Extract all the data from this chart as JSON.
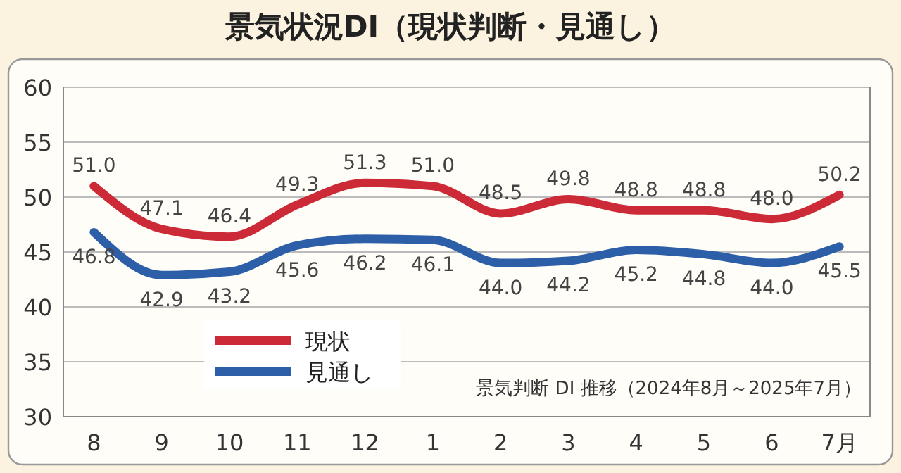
{
  "chart_data": {
    "type": "line",
    "title": "景気状況DI（現状判断・見通し）",
    "categories": [
      "8",
      "9",
      "10",
      "11",
      "12",
      "1",
      "2",
      "3",
      "4",
      "5",
      "6",
      "7月"
    ],
    "series": [
      {
        "name": "現状",
        "color": "#cc2a36",
        "values": [
          51.0,
          47.1,
          46.4,
          49.3,
          51.3,
          51.0,
          48.5,
          49.8,
          48.8,
          48.8,
          48.0,
          50.2
        ],
        "value_labels": [
          "51.0",
          "47.1",
          "46.4",
          "49.3",
          "51.3",
          "51.0",
          "48.5",
          "49.8",
          "48.8",
          "48.8",
          "48.0",
          "50.2"
        ]
      },
      {
        "name": "見通し",
        "color": "#2c5fa8",
        "values": [
          46.8,
          42.9,
          43.2,
          45.6,
          46.2,
          46.1,
          44.0,
          44.2,
          45.2,
          44.8,
          44.0,
          45.5
        ],
        "value_labels": [
          "46.8",
          "42.9",
          "43.2",
          "45.6",
          "46.2",
          "46.1",
          "44.0",
          "44.2",
          "45.2",
          "44.8",
          "44.0",
          "45.5"
        ]
      }
    ],
    "ylim": [
      30,
      60
    ],
    "yticks": [
      30,
      35,
      40,
      45,
      50,
      55,
      60
    ],
    "grid": "y",
    "legend": "bottom left",
    "marker": "none",
    "line_style": "solid",
    "annotations": [
      "景気判断 DI 推移（2024年8月～2025年7月）"
    ]
  }
}
